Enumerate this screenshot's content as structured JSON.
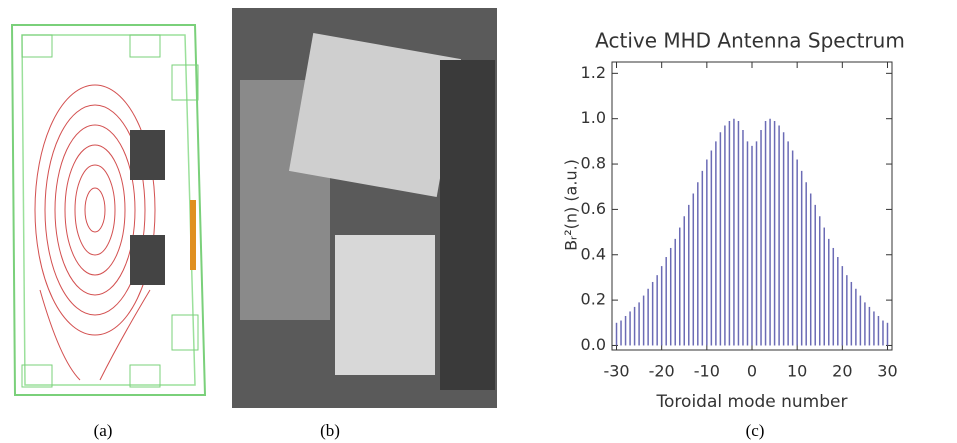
{
  "captions": [
    "(a)",
    "(b)",
    "(c)"
  ],
  "chart_data": {
    "type": "bar",
    "title": "Active MHD Antenna Spectrum",
    "xlabel": "Toroidal mode number",
    "ylabel": "Bᵣ²(n) (a.u.)",
    "x": [
      -30,
      -29,
      -28,
      -27,
      -26,
      -25,
      -24,
      -23,
      -22,
      -21,
      -20,
      -19,
      -18,
      -17,
      -16,
      -15,
      -14,
      -13,
      -12,
      -11,
      -10,
      -9,
      -8,
      -7,
      -6,
      -5,
      -4,
      -3,
      -2,
      -1,
      0,
      1,
      2,
      3,
      4,
      5,
      6,
      7,
      8,
      9,
      10,
      11,
      12,
      13,
      14,
      15,
      16,
      17,
      18,
      19,
      20,
      21,
      22,
      23,
      24,
      25,
      26,
      27,
      28,
      29,
      30
    ],
    "values": [
      0.1,
      0.11,
      0.13,
      0.15,
      0.17,
      0.19,
      0.22,
      0.25,
      0.28,
      0.31,
      0.35,
      0.39,
      0.43,
      0.47,
      0.52,
      0.57,
      0.62,
      0.67,
      0.72,
      0.77,
      0.82,
      0.86,
      0.9,
      0.94,
      0.97,
      0.99,
      1.0,
      0.99,
      0.95,
      0.9,
      0.88,
      0.9,
      0.95,
      0.99,
      1.0,
      0.99,
      0.97,
      0.94,
      0.9,
      0.86,
      0.82,
      0.77,
      0.72,
      0.67,
      0.62,
      0.57,
      0.52,
      0.47,
      0.43,
      0.39,
      0.35,
      0.31,
      0.28,
      0.25,
      0.22,
      0.19,
      0.17,
      0.15,
      0.13,
      0.11,
      0.1
    ],
    "color": "#6b6bb5",
    "xlim": [
      -31,
      31
    ],
    "xticks": [
      -30,
      -20,
      -10,
      0,
      10,
      20,
      30
    ],
    "ylim": [
      -0.02,
      1.25
    ],
    "yticks": [
      {
        "value": 0,
        "label": "0.0"
      },
      0.2,
      0.4,
      0.6,
      0.8,
      {
        "value": 1,
        "label": "1.0"
      },
      1.2
    ]
  }
}
